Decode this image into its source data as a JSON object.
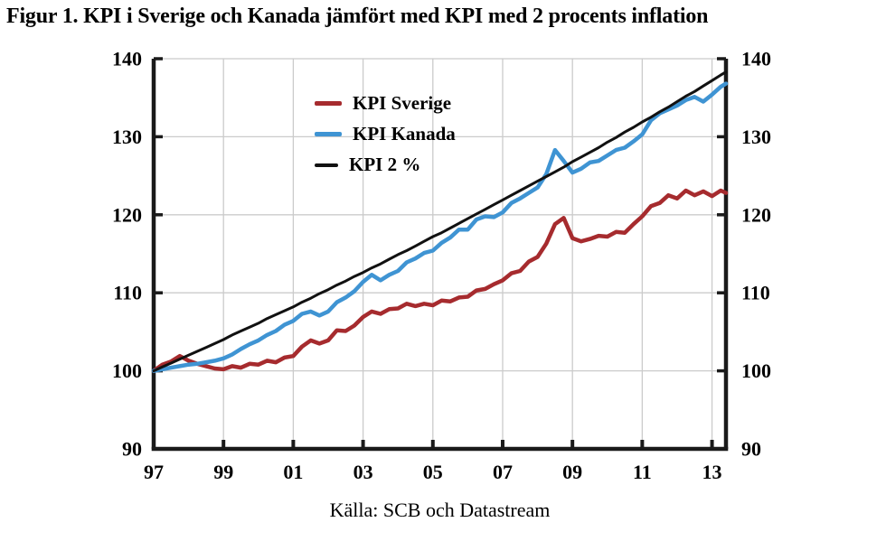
{
  "figure": {
    "title": "Figur 1. KPI i Sverige och Kanada jämfört med KPI med 2 procents inflation",
    "source": "Källa: SCB och Datastream"
  },
  "chart_data": {
    "type": "line",
    "title": "Figur 1. KPI i Sverige och Kanada jämfört med KPI med 2 procents inflation",
    "xlabel": "",
    "ylabel": "",
    "x_range": [
      1997,
      2013.4
    ],
    "y_range": [
      90,
      140
    ],
    "grid": true,
    "grid_color": "#cbcbcb",
    "axis_color": "#1a1a1a",
    "legend_position": "top-left-inside",
    "x_ticks": [
      {
        "v": 1997,
        "label": "97",
        "grid": false,
        "tick": false
      },
      {
        "v": 1999,
        "label": "99",
        "grid": true,
        "tick": true
      },
      {
        "v": 2001,
        "label": "01",
        "grid": true,
        "tick": true
      },
      {
        "v": 2003,
        "label": "03",
        "grid": true,
        "tick": true
      },
      {
        "v": 2005,
        "label": "05",
        "grid": true,
        "tick": true
      },
      {
        "v": 2007,
        "label": "07",
        "grid": true,
        "tick": true
      },
      {
        "v": 2009,
        "label": "09",
        "grid": true,
        "tick": true
      },
      {
        "v": 2011,
        "label": "11",
        "grid": true,
        "tick": true
      },
      {
        "v": 2013,
        "label": "13",
        "grid": true,
        "tick": true
      }
    ],
    "y_ticks": [
      {
        "v": 90,
        "label": "90",
        "grid": false,
        "tick": false
      },
      {
        "v": 100,
        "label": "100",
        "grid": true,
        "tick": true
      },
      {
        "v": 110,
        "label": "110",
        "grid": true,
        "tick": true
      },
      {
        "v": 120,
        "label": "120",
        "grid": true,
        "tick": true
      },
      {
        "v": 130,
        "label": "130",
        "grid": true,
        "tick": true
      },
      {
        "v": 140,
        "label": "140",
        "grid": true,
        "tick": true
      }
    ],
    "x": [
      1997.0,
      1997.25,
      1997.5,
      1997.75,
      1998.0,
      1998.25,
      1998.5,
      1998.75,
      1999.0,
      1999.25,
      1999.5,
      1999.75,
      2000.0,
      2000.25,
      2000.5,
      2000.75,
      2001.0,
      2001.25,
      2001.5,
      2001.75,
      2002.0,
      2002.25,
      2002.5,
      2002.75,
      2003.0,
      2003.25,
      2003.5,
      2003.75,
      2004.0,
      2004.25,
      2004.5,
      2004.75,
      2005.0,
      2005.25,
      2005.5,
      2005.75,
      2006.0,
      2006.25,
      2006.5,
      2006.75,
      2007.0,
      2007.25,
      2007.5,
      2007.75,
      2008.0,
      2008.25,
      2008.5,
      2008.75,
      2009.0,
      2009.25,
      2009.5,
      2009.75,
      2010.0,
      2010.25,
      2010.5,
      2010.75,
      2011.0,
      2011.25,
      2011.5,
      2011.75,
      2012.0,
      2012.25,
      2012.5,
      2012.75,
      2013.0,
      2013.25,
      2013.4
    ],
    "series": [
      {
        "name": "KPI Sverige",
        "color": "#a62b2e",
        "width": 4.5,
        "values": [
          100.0,
          100.8,
          101.2,
          101.9,
          101.3,
          100.9,
          100.6,
          100.3,
          100.2,
          100.6,
          100.4,
          100.9,
          100.8,
          101.3,
          101.1,
          101.7,
          101.9,
          103.1,
          103.9,
          103.5,
          103.9,
          105.2,
          105.1,
          105.8,
          106.9,
          107.6,
          107.3,
          107.9,
          108.0,
          108.6,
          108.3,
          108.6,
          108.4,
          109.0,
          108.9,
          109.4,
          109.5,
          110.3,
          110.5,
          111.1,
          111.6,
          112.5,
          112.8,
          114.0,
          114.6,
          116.3,
          118.8,
          119.6,
          117.0,
          116.6,
          116.9,
          117.3,
          117.2,
          117.8,
          117.7,
          118.8,
          119.8,
          121.1,
          121.5,
          122.5,
          122.1,
          123.1,
          122.5,
          123.0,
          122.4,
          123.1,
          122.8
        ]
      },
      {
        "name": "KPI Kanada",
        "color": "#3f94d3",
        "width": 4.5,
        "values": [
          100.0,
          100.2,
          100.4,
          100.6,
          100.8,
          100.9,
          101.1,
          101.3,
          101.6,
          102.1,
          102.8,
          103.4,
          103.9,
          104.6,
          105.1,
          105.9,
          106.4,
          107.3,
          107.6,
          107.1,
          107.6,
          108.8,
          109.4,
          110.2,
          111.4,
          112.3,
          111.6,
          112.3,
          112.8,
          113.9,
          114.4,
          115.1,
          115.4,
          116.4,
          117.1,
          118.1,
          118.1,
          119.4,
          119.8,
          119.7,
          120.3,
          121.5,
          122.1,
          122.8,
          123.5,
          125.2,
          128.3,
          126.9,
          125.4,
          125.9,
          126.7,
          126.9,
          127.6,
          128.3,
          128.6,
          129.4,
          130.3,
          132.1,
          133.0,
          133.5,
          134.0,
          134.7,
          135.1,
          134.5,
          135.4,
          136.4,
          136.8
        ]
      },
      {
        "name": "KPI 2 %",
        "color": "#111111",
        "width": 3,
        "values": [
          100.0,
          100.5,
          101.0,
          101.5,
          102.0,
          102.5,
          103.0,
          103.5,
          104.0,
          104.6,
          105.1,
          105.6,
          106.1,
          106.7,
          107.2,
          107.7,
          108.2,
          108.8,
          109.3,
          109.9,
          110.4,
          111.0,
          111.5,
          112.1,
          112.6,
          113.2,
          113.7,
          114.3,
          114.9,
          115.4,
          116.0,
          116.6,
          117.2,
          117.7,
          118.3,
          118.9,
          119.5,
          120.1,
          120.7,
          121.3,
          121.9,
          122.5,
          123.1,
          123.7,
          124.3,
          124.9,
          125.5,
          126.1,
          126.8,
          127.4,
          128.0,
          128.6,
          129.3,
          129.9,
          130.6,
          131.2,
          131.9,
          132.5,
          133.2,
          133.8,
          134.5,
          135.2,
          135.8,
          136.5,
          137.2,
          137.9,
          138.3
        ]
      }
    ]
  }
}
